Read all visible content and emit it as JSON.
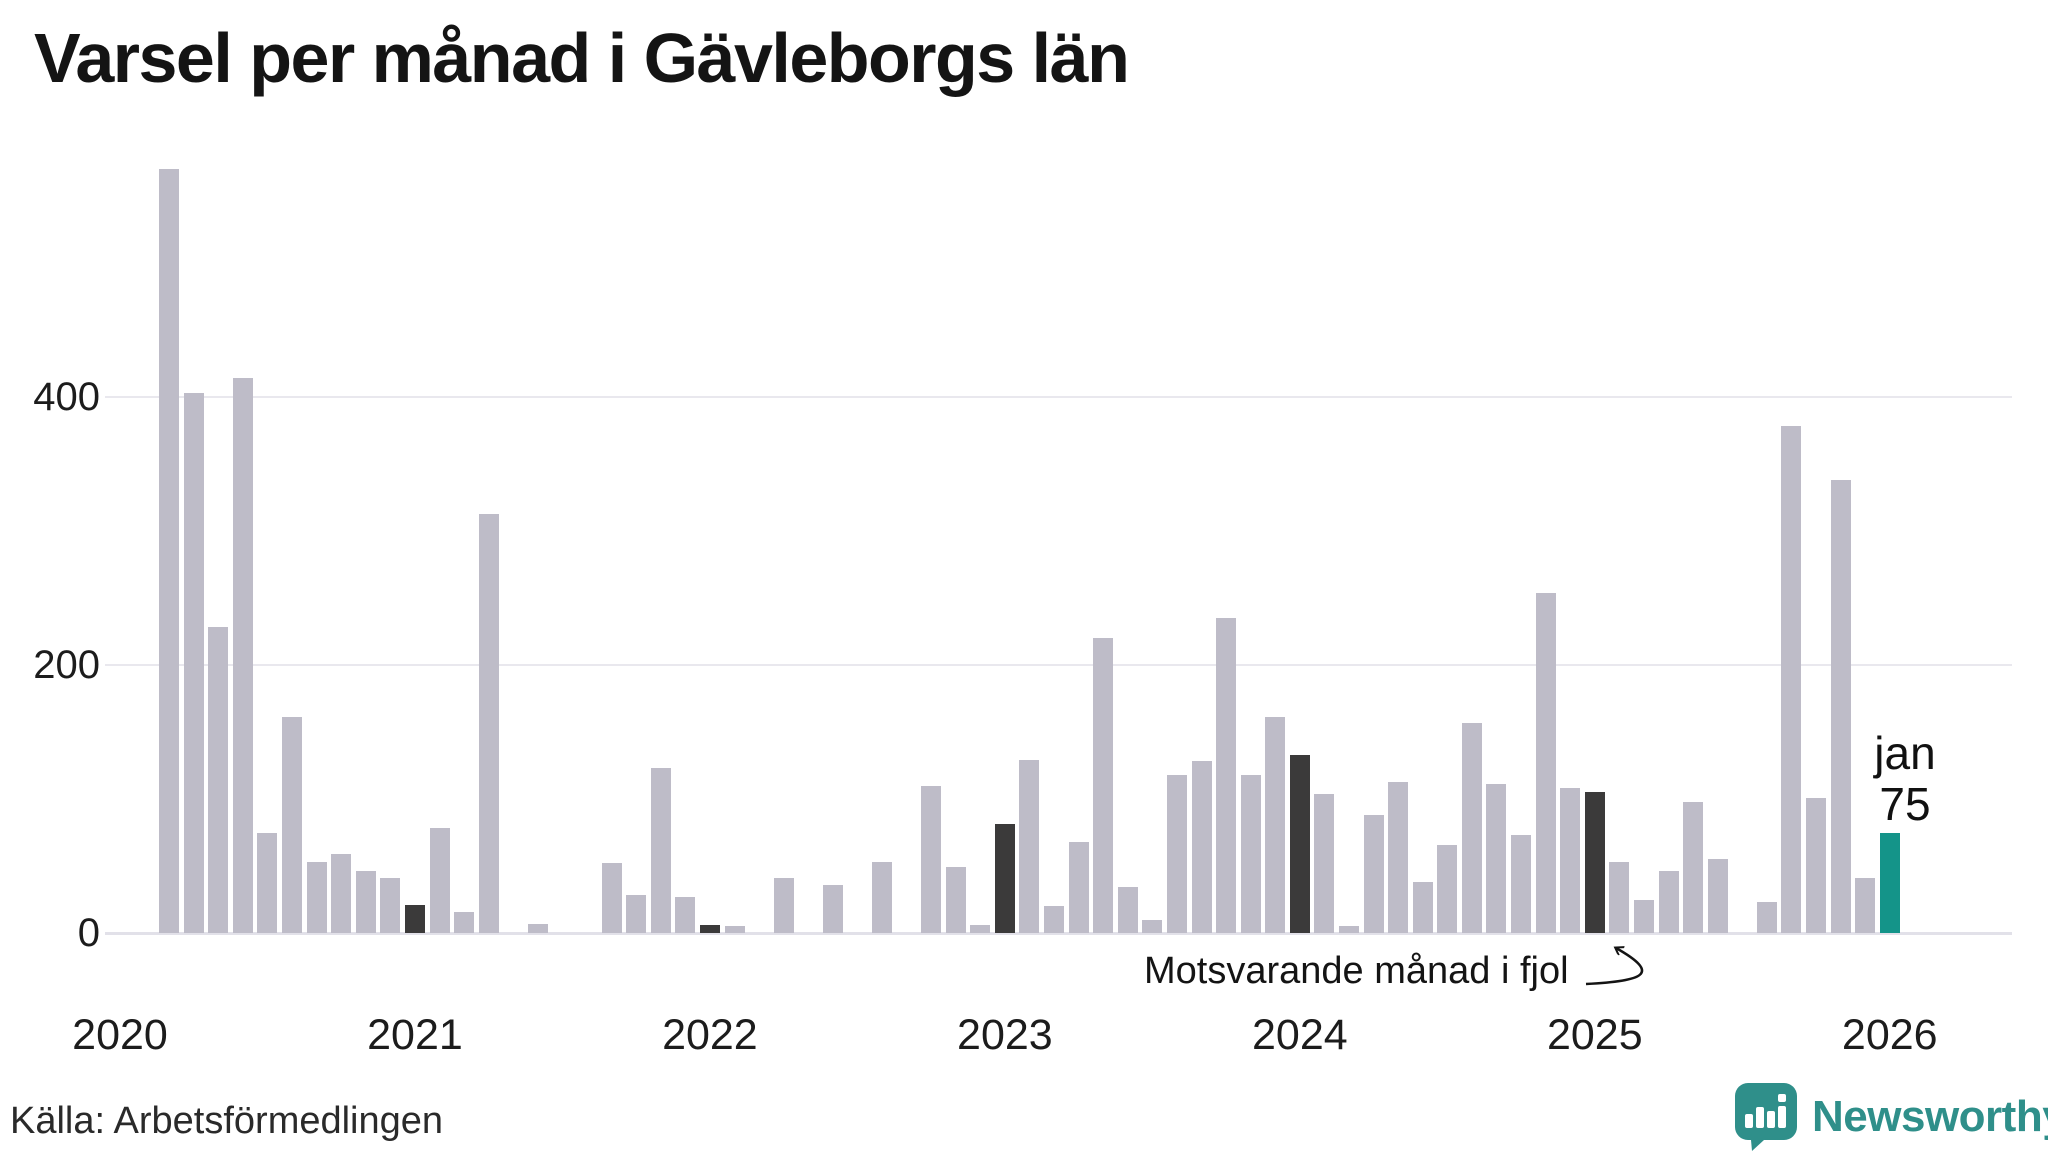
{
  "title": "Varsel per månad i Gävleborgs län",
  "source": "Källa: Arbetsförmedlingen",
  "logo": {
    "name": "Newsworthy",
    "color": "#2f8f8a"
  },
  "annotation": {
    "text": "Motsvarande månad i fjol",
    "target": "2025-01"
  },
  "current_label": {
    "line1": "jan",
    "line2": "75"
  },
  "colors": {
    "bar": "#bebcc8",
    "bar_highlight": "#3b3a3a",
    "bar_current": "#149489",
    "gridline": "#e9e8ee",
    "axis_line": "#e2e1e9",
    "text": "#1c1c1c"
  },
  "chart_data": {
    "type": "bar",
    "title": "Varsel per månad i Gävleborgs län",
    "xlabel": "",
    "ylabel": "",
    "ylim": [
      0,
      580
    ],
    "yticks": [
      0,
      200,
      400
    ],
    "x_years": [
      2020,
      2021,
      2022,
      2023,
      2024,
      2025,
      2026
    ],
    "start_month": "2020-03",
    "end_month": "2026-01",
    "grid": "horizontal",
    "legend": "none",
    "series": [
      {
        "year": 2020,
        "values": [
          null,
          null,
          570,
          403,
          228,
          414,
          75,
          161,
          53,
          59,
          46,
          41
        ]
      },
      {
        "year": 2021,
        "values": [
          21,
          78,
          16,
          313,
          0,
          7,
          0,
          0,
          52,
          28,
          123,
          27
        ]
      },
      {
        "year": 2022,
        "values": [
          6,
          5,
          0,
          41,
          0,
          36,
          0,
          53,
          0,
          110,
          49,
          6
        ]
      },
      {
        "year": 2023,
        "values": [
          81,
          129,
          20,
          68,
          220,
          34,
          10,
          118,
          128,
          235,
          118,
          161
        ]
      },
      {
        "year": 2024,
        "values": [
          133,
          104,
          5,
          88,
          113,
          38,
          66,
          157,
          111,
          73,
          254,
          108
        ]
      },
      {
        "year": 2025,
        "values": [
          105,
          53,
          25,
          46,
          98,
          55,
          0,
          23,
          378,
          101,
          338,
          41
        ]
      },
      {
        "year": 2026,
        "values": [
          75
        ]
      }
    ],
    "highlighted_months": [
      "2021-01",
      "2022-01",
      "2023-01",
      "2024-01",
      "2025-01"
    ],
    "current_month": {
      "month": "2026-01",
      "value": 75,
      "label": "jan 75"
    }
  }
}
